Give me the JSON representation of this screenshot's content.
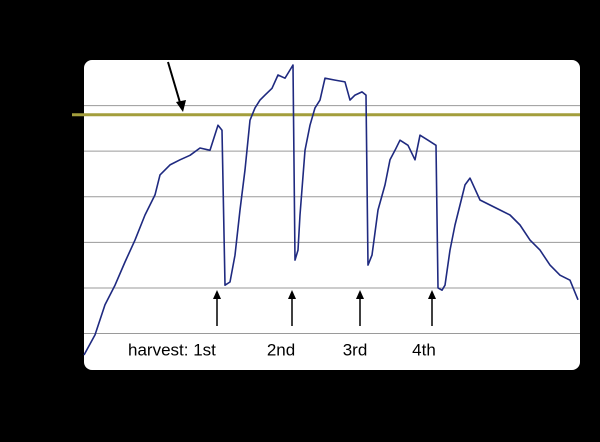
{
  "chart_data": {
    "type": "line",
    "x": [
      0,
      11,
      21,
      31,
      41,
      51,
      61,
      71,
      76,
      86,
      96,
      106,
      116,
      126,
      134,
      138,
      141,
      146,
      151,
      156,
      161,
      166,
      171,
      176,
      181,
      188,
      194,
      201,
      206,
      209,
      211,
      214,
      216,
      221,
      226,
      231,
      236,
      241,
      251,
      261,
      266,
      271,
      278,
      282,
      284,
      288,
      294,
      301,
      306,
      311,
      316,
      324,
      331,
      336,
      344,
      352,
      354,
      358,
      361,
      366,
      371,
      376,
      381,
      386,
      396,
      406,
      416,
      426,
      436,
      446,
      456,
      466,
      476,
      486,
      494
    ],
    "values": [
      0.53,
      0.97,
      1.63,
      2.06,
      2.57,
      3.05,
      3.6,
      4.04,
      4.48,
      4.7,
      4.81,
      4.91,
      5.07,
      5.02,
      5.57,
      5.46,
      2.06,
      2.13,
      2.72,
      3.71,
      4.59,
      5.68,
      5.95,
      6.12,
      6.23,
      6.38,
      6.67,
      6.6,
      6.78,
      6.89,
      2.61,
      2.83,
      3.6,
      5.02,
      5.57,
      5.95,
      6.12,
      6.6,
      6.56,
      6.52,
      6.12,
      6.23,
      6.3,
      6.23,
      2.5,
      2.72,
      3.71,
      4.26,
      4.81,
      5.02,
      5.24,
      5.13,
      4.81,
      5.35,
      5.24,
      5.13,
      2.0,
      1.95,
      2.06,
      2.83,
      3.38,
      3.82,
      4.26,
      4.41,
      3.93,
      3.82,
      3.71,
      3.6,
      3.38,
      3.05,
      2.83,
      2.5,
      2.28,
      2.17,
      1.74
    ],
    "color": "#1f2a80",
    "xlim": [
      0,
      494
    ],
    "ylim": [
      0.2,
      7
    ],
    "yticks": [
      1,
      2,
      3,
      4,
      5,
      6
    ],
    "grid": true,
    "reference_line": {
      "value": 5.8,
      "color": "#a39e3c"
    },
    "annotations": [
      "harvest: 1st",
      "2nd",
      "3rd",
      "4th"
    ]
  }
}
